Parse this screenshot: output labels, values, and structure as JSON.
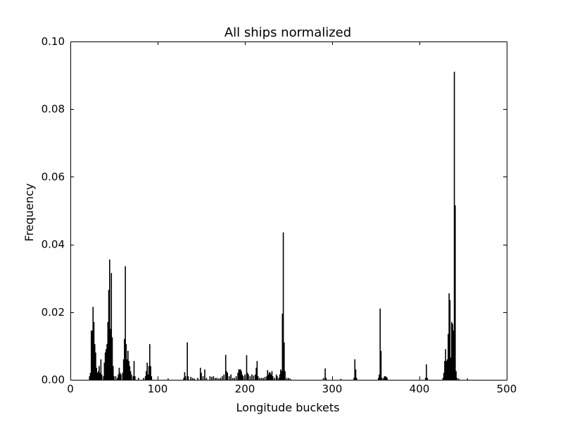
{
  "chart_data": {
    "type": "bar",
    "title": "All ships normalized",
    "xlabel": "Longitude buckets",
    "ylabel": "Frequency",
    "xlim": [
      0,
      500
    ],
    "ylim": [
      0,
      0.1
    ],
    "xticks": [
      0,
      100,
      200,
      300,
      400,
      500
    ],
    "xtick_labels": [
      "0",
      "100",
      "200",
      "300",
      "400",
      "500"
    ],
    "yticks": [
      0,
      0.02,
      0.04,
      0.06,
      0.08,
      0.1
    ],
    "ytick_labels": [
      "0.00",
      "0.02",
      "0.04",
      "0.06",
      "0.08",
      "0.10"
    ],
    "grid": false,
    "bar_color": "#000000",
    "bars": [
      {
        "x": 22,
        "y": 0.001
      },
      {
        "x": 23,
        "y": 0.002
      },
      {
        "x": 24,
        "y": 0.0145
      },
      {
        "x": 25,
        "y": 0.0145
      },
      {
        "x": 26,
        "y": 0.0215
      },
      {
        "x": 27,
        "y": 0.017
      },
      {
        "x": 28,
        "y": 0.0105
      },
      {
        "x": 29,
        "y": 0.008
      },
      {
        "x": 30,
        "y": 0.0035
      },
      {
        "x": 31,
        "y": 0.002
      },
      {
        "x": 32,
        "y": 0.0025
      },
      {
        "x": 33,
        "y": 0.004
      },
      {
        "x": 34,
        "y": 0.002
      },
      {
        "x": 35,
        "y": 0.006
      },
      {
        "x": 36,
        "y": 0.0015
      },
      {
        "x": 38,
        "y": 0.001
      },
      {
        "x": 39,
        "y": 0.005
      },
      {
        "x": 40,
        "y": 0.008
      },
      {
        "x": 41,
        "y": 0.009
      },
      {
        "x": 42,
        "y": 0.0105
      },
      {
        "x": 43,
        "y": 0.017
      },
      {
        "x": 44,
        "y": 0.0265
      },
      {
        "x": 45,
        "y": 0.0355
      },
      {
        "x": 46,
        "y": 0.015
      },
      {
        "x": 47,
        "y": 0.0315
      },
      {
        "x": 48,
        "y": 0.0125
      },
      {
        "x": 49,
        "y": 0.004
      },
      {
        "x": 50,
        "y": 0.001
      },
      {
        "x": 52,
        "y": 0.001
      },
      {
        "x": 54,
        "y": 0.0005
      },
      {
        "x": 55,
        "y": 0.0015
      },
      {
        "x": 56,
        "y": 0.0035
      },
      {
        "x": 57,
        "y": 0.002
      },
      {
        "x": 58,
        "y": 0.0015
      },
      {
        "x": 60,
        "y": 0.002
      },
      {
        "x": 61,
        "y": 0.006
      },
      {
        "x": 62,
        "y": 0.012
      },
      {
        "x": 63,
        "y": 0.0335
      },
      {
        "x": 64,
        "y": 0.0105
      },
      {
        "x": 65,
        "y": 0.006
      },
      {
        "x": 66,
        "y": 0.0085
      },
      {
        "x": 67,
        "y": 0.0055
      },
      {
        "x": 68,
        "y": 0.004
      },
      {
        "x": 69,
        "y": 0.0025
      },
      {
        "x": 70,
        "y": 0.0015
      },
      {
        "x": 72,
        "y": 0.001
      },
      {
        "x": 73,
        "y": 0.0055
      },
      {
        "x": 74,
        "y": 0.001
      },
      {
        "x": 78,
        "y": 0.0005
      },
      {
        "x": 84,
        "y": 0.0005
      },
      {
        "x": 86,
        "y": 0.001
      },
      {
        "x": 87,
        "y": 0.0025
      },
      {
        "x": 88,
        "y": 0.005
      },
      {
        "x": 89,
        "y": 0.0015
      },
      {
        "x": 90,
        "y": 0.004
      },
      {
        "x": 91,
        "y": 0.0105
      },
      {
        "x": 92,
        "y": 0.004
      },
      {
        "x": 93,
        "y": 0.001
      },
      {
        "x": 112,
        "y": 0.0003
      },
      {
        "x": 130,
        "y": 0.0005
      },
      {
        "x": 131,
        "y": 0.0022
      },
      {
        "x": 132,
        "y": 0.001
      },
      {
        "x": 134,
        "y": 0.011
      },
      {
        "x": 135,
        "y": 0.001
      },
      {
        "x": 138,
        "y": 0.0008
      },
      {
        "x": 140,
        "y": 0.0005
      },
      {
        "x": 142,
        "y": 0.0003
      },
      {
        "x": 146,
        "y": 0.0005
      },
      {
        "x": 149,
        "y": 0.0035
      },
      {
        "x": 150,
        "y": 0.002
      },
      {
        "x": 152,
        "y": 0.001
      },
      {
        "x": 154,
        "y": 0.003
      },
      {
        "x": 156,
        "y": 0.0005
      },
      {
        "x": 160,
        "y": 0.001
      },
      {
        "x": 162,
        "y": 0.0008
      },
      {
        "x": 164,
        "y": 0.001
      },
      {
        "x": 166,
        "y": 0.0005
      },
      {
        "x": 168,
        "y": 0.0005
      },
      {
        "x": 170,
        "y": 0.0003
      },
      {
        "x": 172,
        "y": 0.0005
      },
      {
        "x": 174,
        "y": 0.001
      },
      {
        "x": 176,
        "y": 0.0015
      },
      {
        "x": 178,
        "y": 0.0073
      },
      {
        "x": 179,
        "y": 0.0025
      },
      {
        "x": 180,
        "y": 0.002
      },
      {
        "x": 182,
        "y": 0.001
      },
      {
        "x": 184,
        "y": 0.0015
      },
      {
        "x": 186,
        "y": 0.0005
      },
      {
        "x": 188,
        "y": 0.0005
      },
      {
        "x": 190,
        "y": 0.001
      },
      {
        "x": 192,
        "y": 0.002
      },
      {
        "x": 193,
        "y": 0.003
      },
      {
        "x": 194,
        "y": 0.003
      },
      {
        "x": 195,
        "y": 0.003
      },
      {
        "x": 196,
        "y": 0.0025
      },
      {
        "x": 197,
        "y": 0.0015
      },
      {
        "x": 198,
        "y": 0.001
      },
      {
        "x": 200,
        "y": 0.0015
      },
      {
        "x": 202,
        "y": 0.0072
      },
      {
        "x": 203,
        "y": 0.002
      },
      {
        "x": 204,
        "y": 0.0015
      },
      {
        "x": 206,
        "y": 0.001
      },
      {
        "x": 208,
        "y": 0.0015
      },
      {
        "x": 210,
        "y": 0.0012
      },
      {
        "x": 212,
        "y": 0.0015
      },
      {
        "x": 213,
        "y": 0.0035
      },
      {
        "x": 214,
        "y": 0.0055
      },
      {
        "x": 215,
        "y": 0.001
      },
      {
        "x": 217,
        "y": 0.0005
      },
      {
        "x": 219,
        "y": 0.0005
      },
      {
        "x": 221,
        "y": 0.0005
      },
      {
        "x": 223,
        "y": 0.0008
      },
      {
        "x": 225,
        "y": 0.001
      },
      {
        "x": 226,
        "y": 0.0028
      },
      {
        "x": 227,
        "y": 0.0015
      },
      {
        "x": 228,
        "y": 0.0022
      },
      {
        "x": 229,
        "y": 0.002
      },
      {
        "x": 230,
        "y": 0.0015
      },
      {
        "x": 231,
        "y": 0.0025
      },
      {
        "x": 232,
        "y": 0.001
      },
      {
        "x": 234,
        "y": 0.0005
      },
      {
        "x": 236,
        "y": 0.0015
      },
      {
        "x": 237,
        "y": 0.001
      },
      {
        "x": 239,
        "y": 0.0005
      },
      {
        "x": 240,
        "y": 0.0015
      },
      {
        "x": 241,
        "y": 0.003
      },
      {
        "x": 242,
        "y": 0.0025
      },
      {
        "x": 243,
        "y": 0.0195
      },
      {
        "x": 244,
        "y": 0.0435
      },
      {
        "x": 245,
        "y": 0.011
      },
      {
        "x": 246,
        "y": 0.0025
      },
      {
        "x": 248,
        "y": 0.0005
      },
      {
        "x": 250,
        "y": 0.0005
      },
      {
        "x": 252,
        "y": 0.0003
      },
      {
        "x": 290,
        "y": 0.0005
      },
      {
        "x": 292,
        "y": 0.0033
      },
      {
        "x": 293,
        "y": 0.0005
      },
      {
        "x": 310,
        "y": 0.0002
      },
      {
        "x": 325,
        "y": 0.0005
      },
      {
        "x": 326,
        "y": 0.006
      },
      {
        "x": 327,
        "y": 0.003
      },
      {
        "x": 328,
        "y": 0.0005
      },
      {
        "x": 353,
        "y": 0.0005
      },
      {
        "x": 354,
        "y": 0.0015
      },
      {
        "x": 355,
        "y": 0.021
      },
      {
        "x": 356,
        "y": 0.0085
      },
      {
        "x": 357,
        "y": 0.0005
      },
      {
        "x": 359,
        "y": 0.0005
      },
      {
        "x": 360,
        "y": 0.001
      },
      {
        "x": 361,
        "y": 0.001
      },
      {
        "x": 362,
        "y": 0.0008
      },
      {
        "x": 363,
        "y": 0.0005
      },
      {
        "x": 407,
        "y": 0.0005
      },
      {
        "x": 408,
        "y": 0.0045
      },
      {
        "x": 409,
        "y": 0.0005
      },
      {
        "x": 427,
        "y": 0.0005
      },
      {
        "x": 428,
        "y": 0.002
      },
      {
        "x": 429,
        "y": 0.0055
      },
      {
        "x": 430,
        "y": 0.009
      },
      {
        "x": 431,
        "y": 0.0055
      },
      {
        "x": 432,
        "y": 0.006
      },
      {
        "x": 433,
        "y": 0.0135
      },
      {
        "x": 434,
        "y": 0.0255
      },
      {
        "x": 435,
        "y": 0.0235
      },
      {
        "x": 436,
        "y": 0.0065
      },
      {
        "x": 437,
        "y": 0.017
      },
      {
        "x": 438,
        "y": 0.0165
      },
      {
        "x": 439,
        "y": 0.0145
      },
      {
        "x": 440,
        "y": 0.091
      },
      {
        "x": 441,
        "y": 0.0515
      },
      {
        "x": 442,
        "y": 0.0025
      },
      {
        "x": 443,
        "y": 0.0005
      },
      {
        "x": 445,
        "y": 0.0003
      },
      {
        "x": 455,
        "y": 0.0003
      }
    ]
  }
}
